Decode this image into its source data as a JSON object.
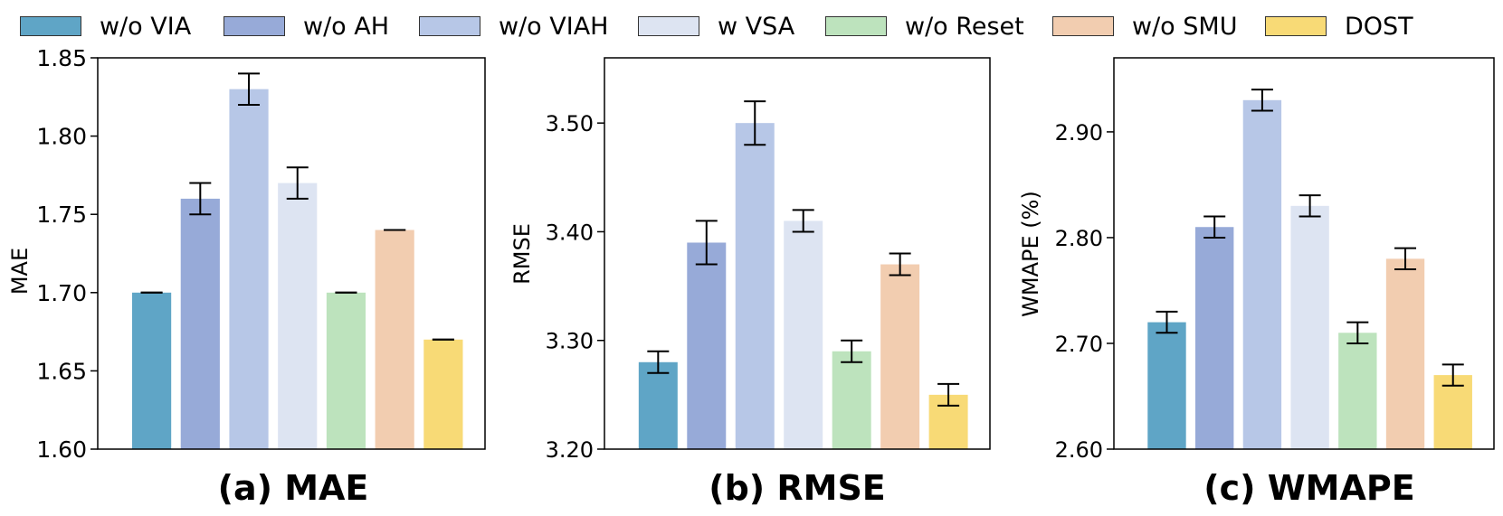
{
  "legend": {
    "items": [
      {
        "label": "w/o VIA",
        "color": "#5fa5c6"
      },
      {
        "label": "w/o AH",
        "color": "#97aad8"
      },
      {
        "label": "w/o VIAH",
        "color": "#b7c7e7"
      },
      {
        "label": "w VSA",
        "color": "#dde4f2"
      },
      {
        "label": "w/o Reset",
        "color": "#bde3bd"
      },
      {
        "label": "w/o SMU",
        "color": "#f2cdb0"
      },
      {
        "label": "DOST",
        "color": "#f8da76"
      }
    ]
  },
  "chart_data": [
    {
      "type": "bar",
      "title": "(a) MAE",
      "ylabel": "MAE",
      "xlabel": "",
      "ylim": [
        1.6,
        1.85
      ],
      "yticks": [
        "1.60",
        "1.65",
        "1.70",
        "1.75",
        "1.80",
        "1.85"
      ],
      "categories": [
        "w/o VIA",
        "w/o AH",
        "w/o VIAH",
        "w VSA",
        "w/o Reset",
        "w/o SMU",
        "DOST"
      ],
      "values": [
        1.7,
        1.76,
        1.83,
        1.77,
        1.7,
        1.74,
        1.67
      ],
      "errors": [
        0.0,
        0.01,
        0.01,
        0.01,
        0.0,
        0.0,
        0.0
      ]
    },
    {
      "type": "bar",
      "title": "(b) RMSE",
      "ylabel": "RMSE",
      "xlabel": "",
      "ylim": [
        3.2,
        3.56
      ],
      "yticks": [
        "3.20",
        "3.30",
        "3.40",
        "3.50"
      ],
      "categories": [
        "w/o VIA",
        "w/o AH",
        "w/o VIAH",
        "w VSA",
        "w/o Reset",
        "w/o SMU",
        "DOST"
      ],
      "values": [
        3.28,
        3.39,
        3.5,
        3.41,
        3.29,
        3.37,
        3.25
      ],
      "errors": [
        0.01,
        0.02,
        0.02,
        0.01,
        0.01,
        0.01,
        0.01
      ]
    },
    {
      "type": "bar",
      "title": "(c) WMAPE",
      "ylabel": "WMAPE (%)",
      "xlabel": "",
      "ylim": [
        2.6,
        2.97
      ],
      "yticks": [
        "2.60",
        "2.70",
        "2.80",
        "2.90"
      ],
      "categories": [
        "w/o VIA",
        "w/o AH",
        "w/o VIAH",
        "w VSA",
        "w/o Reset",
        "w/o SMU",
        "DOST"
      ],
      "values": [
        2.72,
        2.81,
        2.93,
        2.83,
        2.71,
        2.78,
        2.67
      ],
      "errors": [
        0.01,
        0.01,
        0.01,
        0.01,
        0.01,
        0.01,
        0.01
      ]
    }
  ]
}
